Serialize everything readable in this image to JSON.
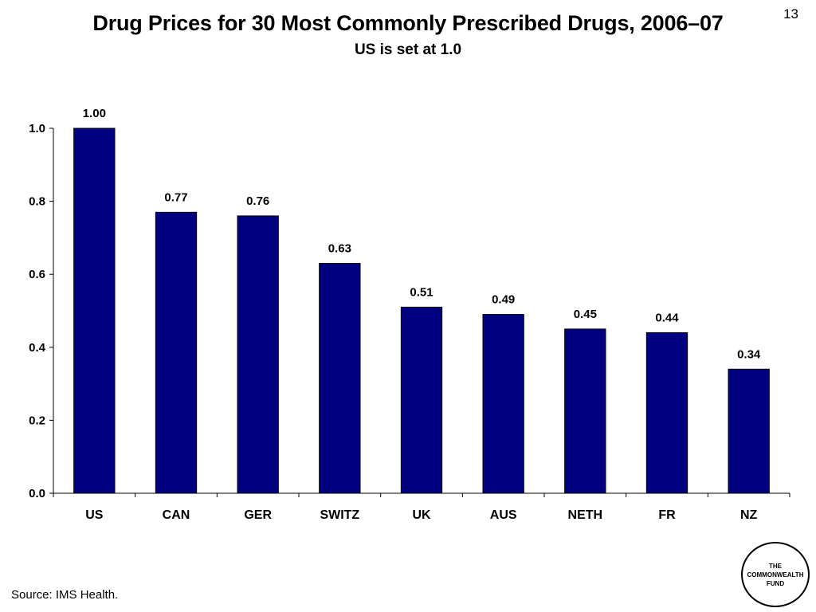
{
  "slide": {
    "page_number": "13",
    "title": "Drug Prices for 30 Most Commonly Prescribed Drugs, 2006–07",
    "subtitle": "US is set at 1.0",
    "source": "Source: IMS Health.",
    "logo": {
      "line1": "THE",
      "line2": "COMMONWEALTH",
      "line3": "FUND"
    }
  },
  "chart_data": {
    "type": "bar",
    "title": "Drug Prices for 30 Most Commonly Prescribed Drugs, 2006–07",
    "subtitle": "US is set at 1.0",
    "xlabel": "",
    "ylabel": "",
    "categories": [
      "US",
      "CAN",
      "GER",
      "SWITZ",
      "UK",
      "AUS",
      "NETH",
      "FR",
      "NZ"
    ],
    "values": [
      1.0,
      0.77,
      0.76,
      0.63,
      0.51,
      0.49,
      0.45,
      0.44,
      0.34
    ],
    "value_labels": [
      "1.00",
      "0.77",
      "0.76",
      "0.63",
      "0.51",
      "0.49",
      "0.45",
      "0.44",
      "0.34"
    ],
    "ylim": [
      0,
      1.0
    ],
    "yticks": [
      "0.0",
      "0.2",
      "0.4",
      "0.6",
      "0.8",
      "1.0"
    ],
    "grid": false,
    "legend": "none",
    "bar_color": "#000080"
  }
}
